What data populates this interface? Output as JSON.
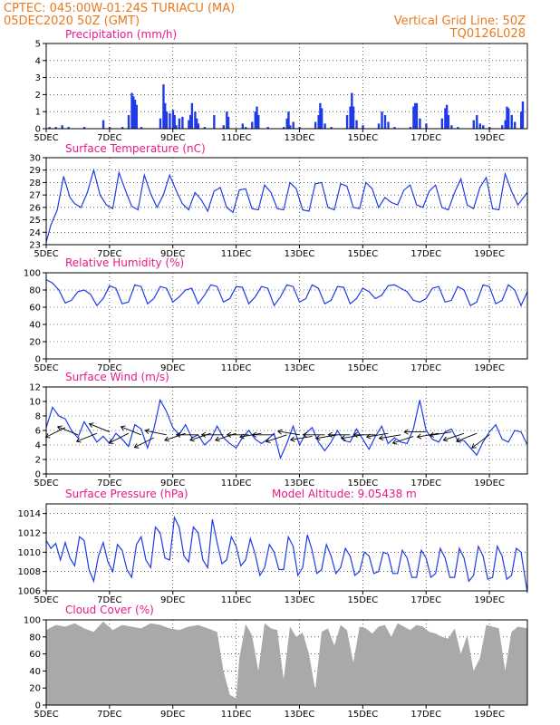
{
  "header": {
    "station": "CPTEC:   045:00W-01:24S   TURIACU  (MA)",
    "run_time": "05DEC2020  50Z  (GMT)",
    "grid_note": "Vertical Grid Line: 50Z",
    "model_id": "TQ0126L028"
  },
  "colors": {
    "line": "#1f3be8",
    "bar": "#1f3be8",
    "cloud": "#a9a9a9",
    "title": "#e81a8a",
    "header": "#e87a1c"
  },
  "x_axis": {
    "labels": [
      "5DEC",
      "7DEC",
      "9DEC",
      "11DEC",
      "13DEC",
      "15DEC",
      "17DEC",
      "19DEC"
    ],
    "label_days": [
      0,
      2,
      4,
      6,
      8,
      10,
      12,
      14
    ],
    "range_days": [
      0,
      15.2
    ]
  },
  "chart_data": [
    {
      "id": "precip",
      "type": "bar",
      "title": "Precipitation (mm/h)",
      "ylim": [
        0,
        5
      ],
      "yticks": [
        0,
        1,
        2,
        3,
        4,
        5
      ],
      "x": [
        0.1,
        0.3,
        0.5,
        0.7,
        1.2,
        1.8,
        2.0,
        2.4,
        2.6,
        2.7,
        2.75,
        2.8,
        2.85,
        3.0,
        3.6,
        3.7,
        3.75,
        3.8,
        3.9,
        4.0,
        4.05,
        4.1,
        4.2,
        4.3,
        4.5,
        4.55,
        4.6,
        4.7,
        4.75,
        4.8,
        5.0,
        5.3,
        5.6,
        5.7,
        5.75,
        6.2,
        6.3,
        6.5,
        6.6,
        6.65,
        6.7,
        7.0,
        7.5,
        7.6,
        7.65,
        7.7,
        7.8,
        8.0,
        8.5,
        8.6,
        8.65,
        8.7,
        8.8,
        9.0,
        9.5,
        9.6,
        9.65,
        9.7,
        9.8,
        10.0,
        10.5,
        10.6,
        10.7,
        10.8,
        11.0,
        11.5,
        11.6,
        11.65,
        11.7,
        11.8,
        12.0,
        12.5,
        12.6,
        12.65,
        12.7,
        12.8,
        13.0,
        13.5,
        13.6,
        13.7,
        13.8,
        14.0,
        14.4,
        14.5,
        14.55,
        14.6,
        14.7,
        14.8,
        15.0,
        15.05
      ],
      "values": [
        0.1,
        0.1,
        0.2,
        0.1,
        0.1,
        0.5,
        0.1,
        0.1,
        0.8,
        2.1,
        1.9,
        1.7,
        1.4,
        0.1,
        0.6,
        2.6,
        1.5,
        1.0,
        0.9,
        1.1,
        0.8,
        0.2,
        0.6,
        0.7,
        0.5,
        0.8,
        1.5,
        1.0,
        0.6,
        0.3,
        0.1,
        0.8,
        0.2,
        1.0,
        0.7,
        0.3,
        0.1,
        0.4,
        1.0,
        1.3,
        0.8,
        0.1,
        0.1,
        0.6,
        1.0,
        0.2,
        0.4,
        0.1,
        0.4,
        0.8,
        1.5,
        1.2,
        0.3,
        0.1,
        0.8,
        1.3,
        2.1,
        1.3,
        0.5,
        0.2,
        0.3,
        1.0,
        0.8,
        0.4,
        0.1,
        0.1,
        1.3,
        1.5,
        1.5,
        0.6,
        0.3,
        0.6,
        1.2,
        1.4,
        0.8,
        0.2,
        0.1,
        0.5,
        0.8,
        0.3,
        0.2,
        0.1,
        0.2,
        0.5,
        1.3,
        1.2,
        0.8,
        0.4,
        1.0,
        1.6
      ]
    },
    {
      "id": "temp",
      "type": "line",
      "title": "Surface Temperature (nC)",
      "ylim": [
        23,
        30
      ],
      "yticks": [
        23,
        24,
        25,
        26,
        27,
        28,
        29,
        30
      ],
      "x": [
        0,
        0.15,
        0.35,
        0.55,
        0.75,
        0.9,
        1.1,
        1.3,
        1.5,
        1.7,
        1.9,
        2.1,
        2.3,
        2.5,
        2.7,
        2.9,
        3.1,
        3.3,
        3.5,
        3.7,
        3.9,
        4.1,
        4.3,
        4.5,
        4.7,
        4.9,
        5.1,
        5.3,
        5.5,
        5.7,
        5.9,
        6.1,
        6.3,
        6.5,
        6.7,
        6.9,
        7.1,
        7.3,
        7.5,
        7.7,
        7.9,
        8.1,
        8.3,
        8.5,
        8.7,
        8.9,
        9.1,
        9.3,
        9.5,
        9.7,
        9.9,
        10.1,
        10.3,
        10.5,
        10.7,
        10.9,
        11.1,
        11.3,
        11.5,
        11.7,
        11.9,
        12.1,
        12.3,
        12.5,
        12.7,
        12.9,
        13.1,
        13.3,
        13.5,
        13.7,
        13.9,
        14.1,
        14.3,
        14.5,
        14.7,
        14.9,
        15.2
      ],
      "values": [
        23.2,
        24.6,
        25.8,
        28.5,
        26.8,
        26.3,
        26.0,
        27.2,
        29.0,
        27.0,
        26.2,
        25.9,
        28.8,
        27.4,
        26.1,
        25.8,
        28.6,
        27.1,
        26.0,
        27.0,
        28.6,
        27.4,
        26.3,
        25.8,
        27.2,
        26.6,
        25.7,
        27.3,
        27.6,
        26.0,
        25.6,
        27.4,
        27.5,
        25.9,
        25.8,
        27.8,
        27.2,
        25.9,
        25.8,
        28.0,
        27.5,
        25.8,
        25.7,
        27.9,
        28.0,
        26.0,
        25.8,
        27.9,
        27.7,
        26.0,
        25.9,
        28.0,
        27.5,
        26.0,
        26.8,
        26.4,
        26.2,
        27.4,
        27.8,
        26.2,
        26.0,
        27.3,
        27.8,
        26.0,
        25.8,
        27.2,
        28.3,
        26.2,
        25.9,
        27.6,
        28.4,
        25.9,
        25.8,
        28.7,
        27.3,
        26.2,
        27.2
      ]
    },
    {
      "id": "rh",
      "type": "line",
      "title": "Relative Humidity (%)",
      "ylim": [
        0,
        100
      ],
      "yticks": [
        0,
        20,
        40,
        60,
        80,
        100
      ],
      "x": [
        0,
        0.2,
        0.4,
        0.6,
        0.8,
        1.0,
        1.2,
        1.4,
        1.6,
        1.8,
        2.0,
        2.2,
        2.4,
        2.6,
        2.8,
        3.0,
        3.2,
        3.4,
        3.6,
        3.8,
        4.0,
        4.2,
        4.4,
        4.6,
        4.8,
        5.0,
        5.2,
        5.4,
        5.6,
        5.8,
        6.0,
        6.2,
        6.4,
        6.6,
        6.8,
        7.0,
        7.2,
        7.4,
        7.6,
        7.8,
        8.0,
        8.2,
        8.4,
        8.6,
        8.8,
        9.0,
        9.2,
        9.4,
        9.6,
        9.8,
        10.0,
        10.2,
        10.4,
        10.6,
        10.8,
        11.0,
        11.2,
        11.4,
        11.6,
        11.8,
        12.0,
        12.2,
        12.4,
        12.6,
        12.8,
        13.0,
        13.2,
        13.4,
        13.6,
        13.8,
        14.0,
        14.2,
        14.4,
        14.6,
        14.8,
        15.0,
        15.2
      ],
      "values": [
        92,
        88,
        80,
        65,
        68,
        78,
        80,
        75,
        62,
        70,
        85,
        82,
        64,
        66,
        86,
        84,
        64,
        70,
        84,
        82,
        66,
        72,
        80,
        82,
        64,
        74,
        86,
        84,
        66,
        70,
        84,
        83,
        64,
        72,
        84,
        82,
        62,
        72,
        86,
        84,
        66,
        70,
        86,
        82,
        64,
        68,
        84,
        83,
        64,
        70,
        82,
        78,
        70,
        74,
        85,
        86,
        82,
        78,
        68,
        66,
        70,
        82,
        84,
        66,
        68,
        84,
        80,
        62,
        66,
        86,
        84,
        64,
        68,
        86,
        80,
        62,
        78
      ]
    },
    {
      "id": "wind",
      "type": "line",
      "title": "Surface Wind (m/s)",
      "ylim": [
        0,
        12
      ],
      "yticks": [
        0,
        2,
        4,
        6,
        8,
        10,
        12
      ],
      "x": [
        0,
        0.2,
        0.4,
        0.6,
        0.8,
        1.0,
        1.2,
        1.4,
        1.6,
        1.8,
        2.0,
        2.2,
        2.4,
        2.6,
        2.8,
        3.0,
        3.2,
        3.4,
        3.6,
        3.8,
        4.0,
        4.2,
        4.4,
        4.6,
        4.8,
        5.0,
        5.2,
        5.4,
        5.6,
        5.8,
        6.0,
        6.2,
        6.4,
        6.6,
        6.8,
        7.0,
        7.2,
        7.4,
        7.6,
        7.8,
        8.0,
        8.2,
        8.4,
        8.6,
        8.8,
        9.0,
        9.2,
        9.4,
        9.6,
        9.8,
        10.0,
        10.2,
        10.4,
        10.6,
        10.8,
        11.0,
        11.2,
        11.4,
        11.6,
        11.8,
        12.0,
        12.2,
        12.4,
        12.6,
        12.8,
        13.0,
        13.2,
        13.4,
        13.6,
        13.8,
        14.0,
        14.2,
        14.4,
        14.6,
        14.8,
        15.0,
        15.2
      ],
      "values": [
        6.4,
        9.2,
        8.0,
        7.6,
        6.0,
        5.0,
        7.2,
        5.8,
        4.4,
        5.2,
        4.2,
        5.6,
        4.8,
        3.8,
        6.8,
        6.2,
        3.6,
        6.2,
        10.2,
        8.6,
        6.4,
        5.4,
        6.8,
        5.0,
        5.4,
        4.0,
        4.8,
        6.6,
        5.0,
        4.2,
        3.6,
        5.0,
        6.0,
        4.8,
        4.2,
        4.8,
        5.6,
        2.2,
        4.2,
        6.6,
        4.0,
        5.6,
        6.4,
        4.4,
        3.2,
        4.4,
        6.0,
        4.6,
        4.4,
        6.2,
        4.8,
        3.4,
        5.2,
        6.6,
        4.2,
        5.0,
        4.4,
        4.2,
        6.2,
        10.2,
        6.0,
        4.8,
        4.4,
        5.8,
        6.2,
        4.6,
        4.6,
        3.6,
        2.6,
        4.4,
        5.8,
        6.8,
        4.8,
        4.4,
        6.0,
        5.8,
        4.0
      ],
      "vectors": [
        {
          "day": 0.6,
          "speed": 6.4,
          "u": -6,
          "v": -3
        },
        {
          "day": 1.0,
          "speed": 5.4,
          "u": -5,
          "v": 2
        },
        {
          "day": 1.6,
          "speed": 5.6,
          "u": -5,
          "v": -2
        },
        {
          "day": 2.0,
          "speed": 5.8,
          "u": -5,
          "v": 2
        },
        {
          "day": 2.6,
          "speed": 5.6,
          "u": -6,
          "v": -3
        },
        {
          "day": 3.0,
          "speed": 5.4,
          "u": -5,
          "v": 2
        },
        {
          "day": 3.4,
          "speed": 5.0,
          "u": -6,
          "v": -3
        },
        {
          "day": 3.8,
          "speed": 5.4,
          "u": -5,
          "v": 1
        },
        {
          "day": 4.4,
          "speed": 5.6,
          "u": -6,
          "v": -2
        },
        {
          "day": 4.8,
          "speed": 5.4,
          "u": -5,
          "v": 0
        },
        {
          "day": 5.2,
          "speed": 5.6,
          "u": -6,
          "v": -2
        },
        {
          "day": 5.6,
          "speed": 5.4,
          "u": -6,
          "v": 0
        },
        {
          "day": 6.0,
          "speed": 5.6,
          "u": -6,
          "v": -2
        },
        {
          "day": 6.4,
          "speed": 5.4,
          "u": -5,
          "v": 0
        },
        {
          "day": 6.8,
          "speed": 5.6,
          "u": -6,
          "v": -1
        },
        {
          "day": 7.2,
          "speed": 5.4,
          "u": -6,
          "v": 0
        },
        {
          "day": 7.6,
          "speed": 5.4,
          "u": -6,
          "v": -2
        },
        {
          "day": 8.0,
          "speed": 5.4,
          "u": -6,
          "v": 1
        },
        {
          "day": 8.4,
          "speed": 5.2,
          "u": -6,
          "v": -1
        },
        {
          "day": 8.8,
          "speed": 5.4,
          "u": -6,
          "v": 0
        },
        {
          "day": 9.2,
          "speed": 5.4,
          "u": -6,
          "v": -1
        },
        {
          "day": 9.6,
          "speed": 5.4,
          "u": -6,
          "v": 0
        },
        {
          "day": 10.0,
          "speed": 5.4,
          "u": -6,
          "v": -1
        },
        {
          "day": 10.4,
          "speed": 5.4,
          "u": -6,
          "v": 0
        },
        {
          "day": 10.8,
          "speed": 5.6,
          "u": -6,
          "v": -1
        },
        {
          "day": 11.2,
          "speed": 5.4,
          "u": -6,
          "v": -1
        },
        {
          "day": 11.6,
          "speed": 5.2,
          "u": -6,
          "v": -2
        },
        {
          "day": 12.0,
          "speed": 5.8,
          "u": -6,
          "v": 0
        },
        {
          "day": 12.4,
          "speed": 5.6,
          "u": -6,
          "v": -1
        },
        {
          "day": 12.8,
          "speed": 5.8,
          "u": -6,
          "v": -1
        },
        {
          "day": 13.2,
          "speed": 5.6,
          "u": -6,
          "v": -2
        },
        {
          "day": 13.6,
          "speed": 5.6,
          "u": -5,
          "v": -2
        },
        {
          "day": 14.0,
          "speed": 5.4,
          "u": -4,
          "v": -3
        }
      ]
    },
    {
      "id": "pres",
      "type": "line",
      "title": "Surface Pressure (hPa)",
      "extra_label": "Model Altitude: 9.05438  m",
      "ylim": [
        1006,
        1015
      ],
      "yticks": [
        1006,
        1008,
        1010,
        1012,
        1014
      ],
      "x": [
        0,
        0.15,
        0.3,
        0.45,
        0.6,
        0.75,
        0.9,
        1.05,
        1.2,
        1.35,
        1.5,
        1.65,
        1.8,
        1.95,
        2.1,
        2.25,
        2.4,
        2.55,
        2.7,
        2.85,
        3.0,
        3.15,
        3.3,
        3.45,
        3.6,
        3.75,
        3.9,
        4.05,
        4.2,
        4.35,
        4.5,
        4.65,
        4.8,
        4.95,
        5.1,
        5.25,
        5.4,
        5.55,
        5.7,
        5.85,
        6.0,
        6.15,
        6.3,
        6.45,
        6.6,
        6.75,
        6.9,
        7.05,
        7.2,
        7.35,
        7.5,
        7.65,
        7.8,
        7.95,
        8.1,
        8.25,
        8.4,
        8.55,
        8.7,
        8.85,
        9.0,
        9.15,
        9.3,
        9.45,
        9.6,
        9.75,
        9.9,
        10.05,
        10.2,
        10.35,
        10.5,
        10.65,
        10.8,
        10.95,
        11.1,
        11.25,
        11.4,
        11.55,
        11.7,
        11.85,
        12.0,
        12.15,
        12.3,
        12.45,
        12.6,
        12.75,
        12.9,
        13.05,
        13.2,
        13.35,
        13.5,
        13.65,
        13.8,
        13.95,
        14.1,
        14.25,
        14.4,
        14.55,
        14.7,
        14.85,
        15.0,
        15.2
      ],
      "values": [
        1011.2,
        1010.4,
        1010.9,
        1009.2,
        1011.0,
        1009.4,
        1008.6,
        1011.6,
        1011.2,
        1008.2,
        1007.0,
        1009.6,
        1011.0,
        1009.0,
        1008.0,
        1010.8,
        1010.2,
        1008.2,
        1007.4,
        1010.8,
        1011.6,
        1009.2,
        1008.4,
        1012.6,
        1012.0,
        1009.4,
        1009.2,
        1013.6,
        1012.6,
        1009.6,
        1009.0,
        1012.6,
        1012.0,
        1009.2,
        1008.4,
        1013.4,
        1011.0,
        1008.8,
        1009.2,
        1011.6,
        1010.6,
        1008.6,
        1009.2,
        1011.4,
        1009.8,
        1007.6,
        1008.4,
        1010.8,
        1010.0,
        1008.2,
        1008.2,
        1011.6,
        1010.6,
        1007.6,
        1008.4,
        1011.8,
        1010.2,
        1007.8,
        1008.2,
        1010.8,
        1009.6,
        1007.8,
        1008.4,
        1010.4,
        1009.6,
        1007.6,
        1008.0,
        1010.0,
        1009.6,
        1007.8,
        1008.0,
        1010.0,
        1009.8,
        1007.8,
        1007.8,
        1010.2,
        1009.4,
        1007.4,
        1007.4,
        1010.2,
        1009.4,
        1007.4,
        1007.8,
        1010.4,
        1009.4,
        1007.4,
        1007.4,
        1010.4,
        1009.4,
        1007.0,
        1007.6,
        1010.6,
        1009.6,
        1007.2,
        1007.4,
        1010.6,
        1009.6,
        1007.2,
        1007.6,
        1010.4,
        1010.0,
        1005.8
      ]
    },
    {
      "id": "cloud",
      "type": "area",
      "title": "Cloud Cover (%)",
      "ylim": [
        0,
        100
      ],
      "yticks": [
        0,
        20,
        40,
        60,
        80,
        100
      ],
      "x": [
        0,
        0.3,
        0.6,
        0.9,
        1.2,
        1.5,
        1.8,
        2.1,
        2.4,
        2.7,
        3.0,
        3.3,
        3.6,
        3.9,
        4.2,
        4.5,
        4.8,
        5.1,
        5.4,
        5.6,
        5.8,
        6.0,
        6.1,
        6.3,
        6.5,
        6.7,
        6.9,
        7.1,
        7.3,
        7.5,
        7.7,
        7.9,
        8.1,
        8.3,
        8.5,
        8.7,
        8.9,
        9.1,
        9.3,
        9.5,
        9.7,
        9.9,
        10.1,
        10.3,
        10.5,
        10.7,
        10.9,
        11.1,
        11.3,
        11.5,
        11.7,
        11.9,
        12.1,
        12.3,
        12.5,
        12.7,
        12.9,
        13.1,
        13.3,
        13.5,
        13.7,
        13.9,
        14.1,
        14.3,
        14.5,
        14.7,
        14.9,
        15.2
      ],
      "values": [
        88,
        94,
        92,
        96,
        90,
        86,
        98,
        88,
        94,
        92,
        90,
        96,
        94,
        90,
        88,
        92,
        94,
        90,
        86,
        40,
        12,
        8,
        55,
        95,
        82,
        40,
        96,
        90,
        88,
        30,
        92,
        80,
        85,
        60,
        18,
        86,
        90,
        70,
        94,
        88,
        50,
        92,
        90,
        84,
        92,
        94,
        80,
        96,
        92,
        88,
        94,
        92,
        86,
        84,
        80,
        78,
        90,
        60,
        82,
        40,
        55,
        94,
        92,
        90,
        40,
        86,
        92,
        90
      ]
    }
  ]
}
